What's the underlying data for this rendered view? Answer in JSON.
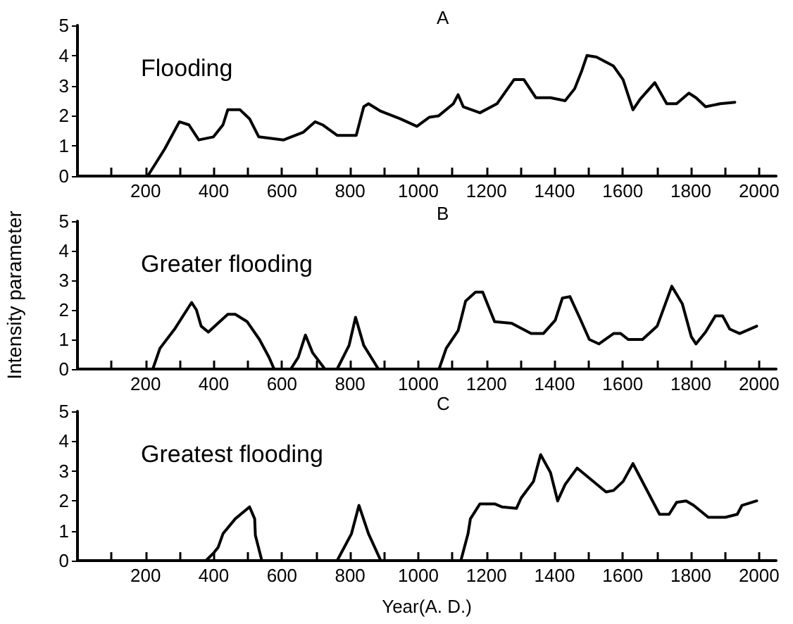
{
  "chart_data": [
    {
      "type": "line",
      "title": "A",
      "annotations": [
        "Flooding"
      ],
      "xlim": [
        0,
        2050
      ],
      "ylim": [
        0,
        5
      ],
      "yticks": [
        0,
        1,
        2,
        3,
        4,
        5
      ],
      "xticks": [
        {
          "value": 100,
          "label": null
        },
        200,
        {
          "value": 300,
          "label": null
        },
        400,
        {
          "value": 500,
          "label": null
        },
        600,
        {
          "value": 700,
          "label": null
        },
        800,
        {
          "value": 900,
          "label": null
        },
        1000,
        {
          "value": 1100,
          "label": null
        },
        1200,
        {
          "value": 1300,
          "label": null
        },
        1400,
        {
          "value": 1500,
          "label": null
        },
        1600,
        {
          "value": 1700,
          "label": null
        },
        1800,
        {
          "value": 1900,
          "label": null
        },
        2000
      ],
      "grid": false,
      "marker": "none",
      "line_style": "solid",
      "series": [
        {
          "color": "#000000",
          "x": [
            206,
            256,
            299,
            327,
            356,
            399,
            427,
            441,
            477,
            505,
            532,
            605,
            662,
            697,
            719,
            762,
            818,
            840,
            854,
            890,
            947,
            996,
            1032,
            1060,
            1103,
            1117,
            1132,
            1181,
            1231,
            1281,
            1310,
            1345,
            1388,
            1431,
            1459,
            1480,
            1495,
            1523,
            1573,
            1601,
            1630,
            1651,
            1694,
            1729,
            1758,
            1794,
            1815,
            1843,
            1886,
            1929
          ],
          "values": [
            0,
            0.9,
            1.8,
            1.7,
            1.2,
            1.3,
            1.7,
            2.2,
            2.2,
            1.9,
            1.3,
            1.2,
            1.45,
            1.8,
            1.7,
            1.35,
            1.35,
            2.3,
            2.4,
            2.15,
            1.9,
            1.65,
            1.95,
            2,
            2.4,
            2.7,
            2.3,
            2.1,
            2.4,
            3.2,
            3.2,
            2.6,
            2.6,
            2.5,
            2.9,
            3.5,
            4,
            3.95,
            3.65,
            3.2,
            2.2,
            2.55,
            3.1,
            2.4,
            2.4,
            2.75,
            2.6,
            2.3,
            2.4,
            2.45
          ]
        }
      ]
    },
    {
      "type": "line",
      "title": "B",
      "ylabel": "Intensity parameter",
      "annotations": [
        "Greater flooding"
      ],
      "xlim": [
        0,
        2050
      ],
      "ylim": [
        0,
        5
      ],
      "yticks": [
        0,
        1,
        2,
        3,
        4,
        5
      ],
      "xticks": [
        {
          "value": 100,
          "label": null
        },
        200,
        {
          "value": 300,
          "label": null
        },
        400,
        {
          "value": 500,
          "label": null
        },
        600,
        {
          "value": 700,
          "label": null
        },
        800,
        {
          "value": 900,
          "label": null
        },
        1000,
        {
          "value": 1100,
          "label": null
        },
        1200,
        {
          "value": 1300,
          "label": null
        },
        1400,
        {
          "value": 1500,
          "label": null
        },
        1600,
        {
          "value": 1700,
          "label": null
        },
        1800,
        {
          "value": 1900,
          "label": null
        },
        2000
      ],
      "grid": false,
      "marker": "none",
      "line_style": "solid",
      "series": [
        {
          "color": "#000000",
          "x": [
            221,
            242,
            285,
            335,
            349,
            363,
            384,
            441,
            463,
            498,
            534,
            562,
            577,
            626,
            648,
            669,
            690,
            726,
            762,
            797,
            816,
            840,
            883,
            1061,
            1082,
            1117,
            1139,
            1168,
            1189,
            1224,
            1274,
            1331,
            1367,
            1402,
            1423,
            1445,
            1473,
            1502,
            1530,
            1573,
            1594,
            1616,
            1658,
            1701,
            1744,
            1775,
            1801,
            1815,
            1843,
            1872,
            1893,
            1914,
            1943,
            1993
          ],
          "values": [
            0,
            0.7,
            1.35,
            2.25,
            2,
            1.45,
            1.25,
            1.85,
            1.85,
            1.6,
            1,
            0.4,
            0,
            0,
            0.4,
            1.15,
            0.55,
            0,
            0,
            0.8,
            1.75,
            0.8,
            0,
            0,
            0.7,
            1.3,
            2.3,
            2.6,
            2.6,
            1.6,
            1.55,
            1.2,
            1.2,
            1.65,
            2.4,
            2.45,
            1.75,
            1,
            0.85,
            1.2,
            1.2,
            1,
            1,
            1.45,
            2.8,
            2.2,
            1.1,
            0.85,
            1.25,
            1.8,
            1.8,
            1.35,
            1.2,
            1.45
          ]
        }
      ]
    },
    {
      "type": "line",
      "title": "C",
      "xlabel": "Year(A. D.)",
      "annotations": [
        "Greatest flooding"
      ],
      "xlim": [
        0,
        2050
      ],
      "ylim": [
        0,
        5
      ],
      "yticks": [
        0,
        1,
        2,
        3,
        4,
        5
      ],
      "xticks": [
        {
          "value": 100,
          "label": null
        },
        200,
        {
          "value": 300,
          "label": null
        },
        400,
        {
          "value": 500,
          "label": null
        },
        600,
        {
          "value": 700,
          "label": null
        },
        800,
        {
          "value": 900,
          "label": null
        },
        1000,
        {
          "value": 1100,
          "label": null
        },
        1200,
        {
          "value": 1300,
          "label": null
        },
        1400,
        {
          "value": 1500,
          "label": null
        },
        1600,
        {
          "value": 1700,
          "label": null
        },
        1800,
        {
          "value": 1900,
          "label": null
        },
        2000
      ],
      "grid": false,
      "marker": "none",
      "line_style": "solid",
      "series": [
        {
          "color": "#000000",
          "x": [
            377,
            399,
            413,
            427,
            463,
            505,
            520,
            522,
            541,
            762,
            804,
            826,
            854,
            890,
            1125,
            1146,
            1153,
            1181,
            1224,
            1245,
            1288,
            1302,
            1338,
            1359,
            1388,
            1409,
            1431,
            1466,
            1551,
            1573,
            1601,
            1630,
            1708,
            1736,
            1758,
            1786,
            1808,
            1851,
            1901,
            1936,
            1950,
            1993
          ],
          "values": [
            0,
            0.25,
            0.45,
            0.9,
            1.4,
            1.8,
            1.4,
            0.85,
            0,
            0,
            0.9,
            1.85,
            0.9,
            0,
            0,
            0.9,
            1.4,
            1.9,
            1.9,
            1.8,
            1.75,
            2.1,
            2.65,
            3.55,
            2.95,
            2,
            2.55,
            3.1,
            2.3,
            2.35,
            2.65,
            3.25,
            1.55,
            1.55,
            1.95,
            2,
            1.85,
            1.45,
            1.45,
            1.55,
            1.85,
            2
          ]
        }
      ]
    }
  ]
}
